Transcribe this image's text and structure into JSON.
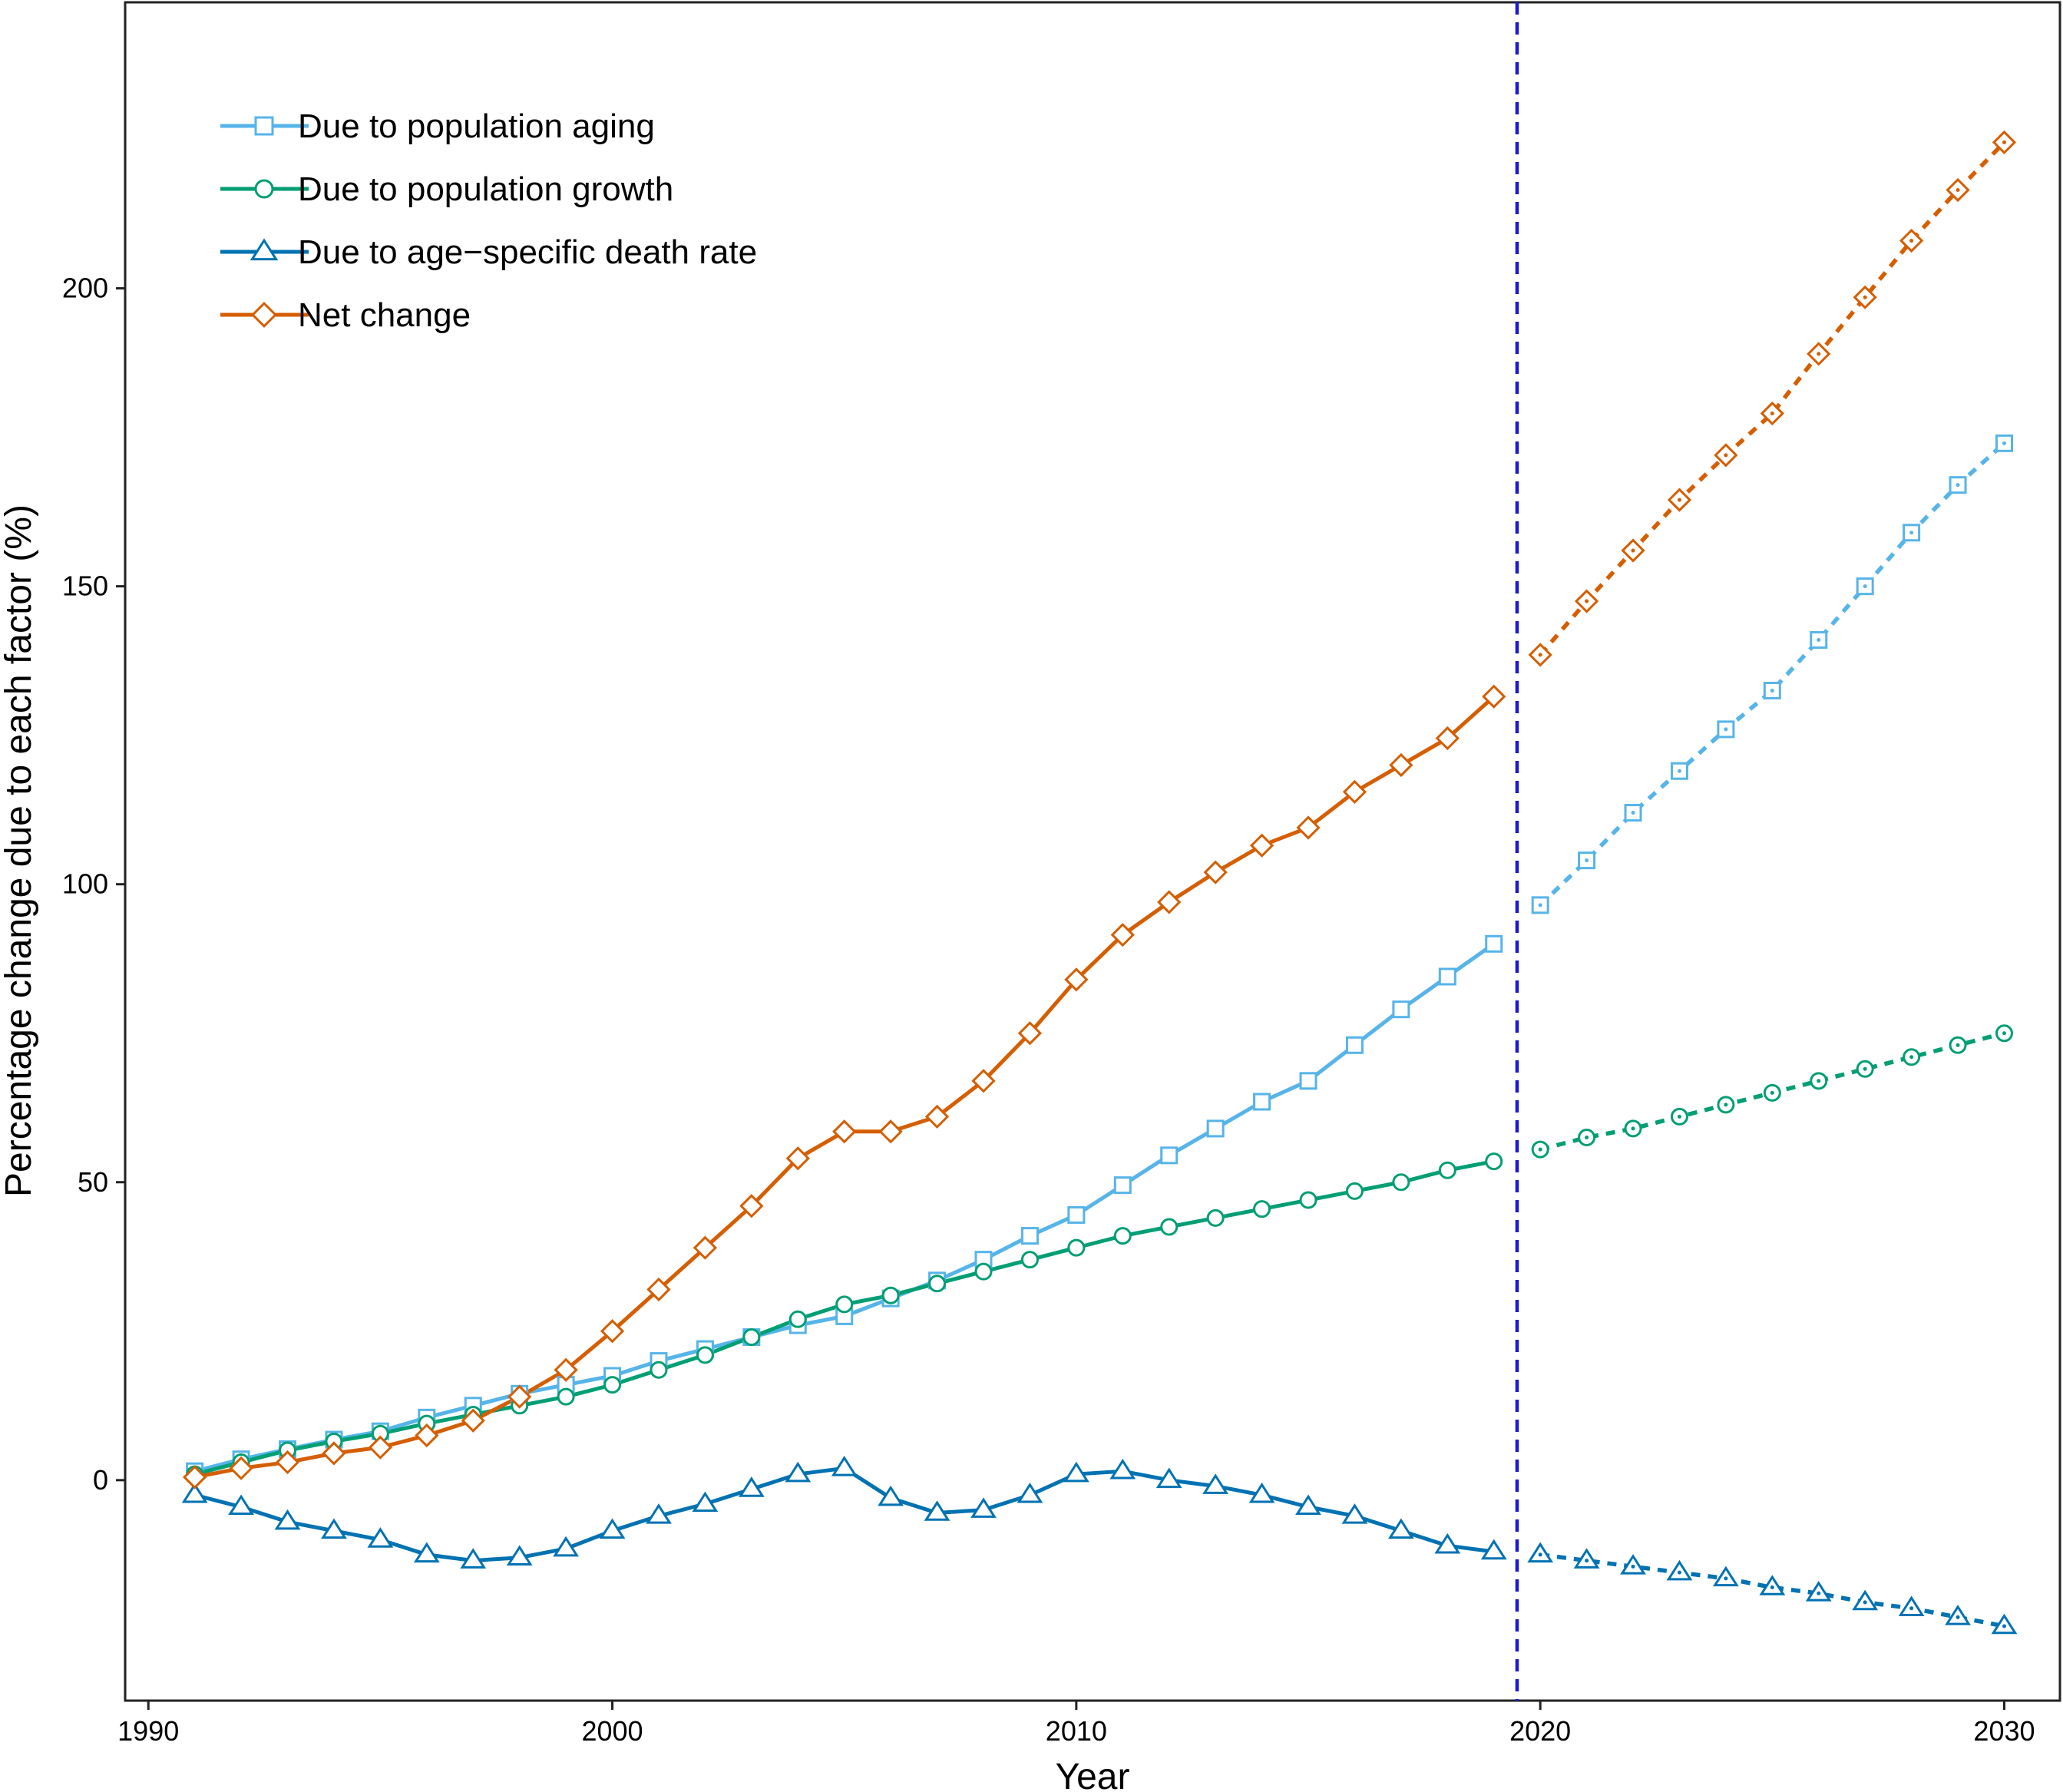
{
  "chart_data": {
    "type": "line",
    "title": "",
    "xlabel": "Year",
    "ylabel": "Percentage change due to each factor (%)",
    "xlim": [
      1989.5,
      2031.2
    ],
    "ylim": [
      -37,
      248
    ],
    "xticks": [
      1990,
      2000,
      2010,
      2020,
      2030
    ],
    "yticks": [
      0,
      50,
      100,
      150,
      200
    ],
    "grid": false,
    "legend_position": "top-left",
    "projection_start": 2019.5,
    "observed_years": [
      1991,
      1992,
      1993,
      1994,
      1995,
      1996,
      1997,
      1998,
      1999,
      2000,
      2001,
      2002,
      2003,
      2004,
      2005,
      2006,
      2007,
      2008,
      2009,
      2010,
      2011,
      2012,
      2013,
      2014,
      2015,
      2016,
      2017,
      2018,
      2019
    ],
    "projected_years": [
      2020,
      2021,
      2022,
      2023,
      2024,
      2025,
      2026,
      2027,
      2028,
      2029,
      2030
    ],
    "series": [
      {
        "name": "Due to population aging",
        "color": "#56b4e9",
        "marker": "square",
        "observed": [
          1.5,
          3.5,
          5.2,
          6.8,
          8.2,
          10.5,
          12.5,
          14.5,
          16.0,
          17.5,
          20.0,
          22.0,
          24.0,
          26.0,
          27.5,
          30.5,
          33.5,
          37.0,
          41.0,
          44.5,
          49.5,
          54.5,
          59.0,
          63.5,
          67.0,
          73.0,
          79.0,
          84.5,
          90.0
        ],
        "projected": [
          96.5,
          104.0,
          112.0,
          119.0,
          126.0,
          132.5,
          141.0,
          150.0,
          159.0,
          167.0,
          174.0
        ]
      },
      {
        "name": "Due to population growth",
        "color": "#009e73",
        "marker": "circle",
        "observed": [
          1.0,
          3.0,
          5.0,
          6.5,
          7.8,
          9.5,
          11.0,
          12.5,
          14.0,
          16.0,
          18.5,
          21.0,
          24.0,
          27.0,
          29.5,
          31.0,
          33.0,
          35.0,
          37.0,
          39.0,
          41.0,
          42.5,
          44.0,
          45.5,
          47.0,
          48.5,
          50.0,
          52.0,
          53.5
        ],
        "projected": [
          55.5,
          57.5,
          59.0,
          61.0,
          63.0,
          65.0,
          67.0,
          69.0,
          71.0,
          73.0,
          75.0
        ]
      },
      {
        "name": "Due to age−specific death rate",
        "color": "#0072b2",
        "marker": "triangle",
        "observed": [
          -2.5,
          -4.5,
          -7.0,
          -8.5,
          -10.0,
          -12.5,
          -13.5,
          -13.0,
          -11.5,
          -8.5,
          -6.0,
          -4.0,
          -1.5,
          1.0,
          2.0,
          -3.0,
          -5.5,
          -5.0,
          -2.5,
          1.0,
          1.5,
          0.0,
          -1.0,
          -2.5,
          -4.5,
          -6.0,
          -8.5,
          -11.0,
          -12.0
        ],
        "projected": [
          -12.5,
          -13.5,
          -14.5,
          -15.5,
          -16.5,
          -18.0,
          -19.0,
          -20.5,
          -21.5,
          -23.0,
          -24.5
        ]
      },
      {
        "name": "Net change",
        "color": "#d55e00",
        "marker": "diamond",
        "observed": [
          0.5,
          2.0,
          3.0,
          4.5,
          5.5,
          7.5,
          10.0,
          14.0,
          18.5,
          25.0,
          32.0,
          39.0,
          46.0,
          54.0,
          58.5,
          58.5,
          61.0,
          67.0,
          75.0,
          84.0,
          91.5,
          97.0,
          102.0,
          106.5,
          109.5,
          115.5,
          120.0,
          124.5,
          131.5
        ],
        "projected": [
          138.5,
          147.5,
          156.0,
          164.5,
          172.0,
          179.0,
          189.0,
          198.5,
          208.0,
          216.5,
          224.5
        ]
      }
    ]
  }
}
